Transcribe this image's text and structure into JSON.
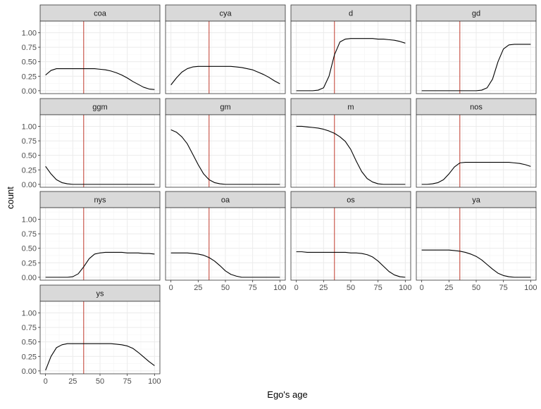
{
  "chart_data": {
    "type": "line",
    "facet_layout": "4 columns, 4 rows",
    "xlabel": "Ego's age",
    "ylabel": "count",
    "xlim": [
      0,
      100
    ],
    "ylim": [
      0,
      1.0
    ],
    "x_ticks": [
      "0",
      "25",
      "50",
      "75",
      "100"
    ],
    "y_ticks": [
      "0.00",
      "0.25",
      "0.50",
      "0.75",
      "1.00"
    ],
    "grid": true,
    "reference_line": {
      "x": 35,
      "color": "#c0392b"
    },
    "colors": {
      "line": "#000000",
      "vline": "#c0392b",
      "strip_fill": "#d9d9d9",
      "grid_major": "#ebebeb",
      "grid_minor": "#f5f5f5"
    },
    "x": [
      0,
      5,
      10,
      15,
      20,
      25,
      30,
      35,
      40,
      45,
      50,
      55,
      60,
      65,
      70,
      75,
      80,
      85,
      90,
      95,
      100
    ],
    "series": [
      {
        "name": "coa",
        "values": [
          0.27,
          0.35,
          0.38,
          0.38,
          0.38,
          0.38,
          0.38,
          0.38,
          0.38,
          0.38,
          0.37,
          0.36,
          0.34,
          0.31,
          0.27,
          0.22,
          0.16,
          0.11,
          0.06,
          0.03,
          0.02
        ]
      },
      {
        "name": "cya",
        "values": [
          0.1,
          0.22,
          0.32,
          0.38,
          0.41,
          0.42,
          0.42,
          0.42,
          0.42,
          0.42,
          0.42,
          0.42,
          0.41,
          0.4,
          0.38,
          0.36,
          0.32,
          0.28,
          0.23,
          0.17,
          0.12
        ]
      },
      {
        "name": "d",
        "values": [
          0.0,
          0.0,
          0.0,
          0.0,
          0.01,
          0.05,
          0.25,
          0.62,
          0.84,
          0.89,
          0.9,
          0.9,
          0.9,
          0.9,
          0.9,
          0.89,
          0.89,
          0.88,
          0.87,
          0.85,
          0.82
        ]
      },
      {
        "name": "gd",
        "values": [
          0.0,
          0.0,
          0.0,
          0.0,
          0.0,
          0.0,
          0.0,
          0.0,
          0.0,
          0.0,
          0.0,
          0.01,
          0.05,
          0.2,
          0.5,
          0.72,
          0.79,
          0.8,
          0.8,
          0.8,
          0.8
        ]
      },
      {
        "name": "ggm",
        "values": [
          0.31,
          0.18,
          0.08,
          0.03,
          0.01,
          0.0,
          0.0,
          0.0,
          0.0,
          0.0,
          0.0,
          0.0,
          0.0,
          0.0,
          0.0,
          0.0,
          0.0,
          0.0,
          0.0,
          0.0,
          0.0
        ]
      },
      {
        "name": "gm",
        "values": [
          0.94,
          0.9,
          0.82,
          0.7,
          0.52,
          0.34,
          0.18,
          0.08,
          0.03,
          0.01,
          0.0,
          0.0,
          0.0,
          0.0,
          0.0,
          0.0,
          0.0,
          0.0,
          0.0,
          0.0,
          0.0
        ]
      },
      {
        "name": "m",
        "values": [
          1.0,
          1.0,
          0.99,
          0.98,
          0.97,
          0.95,
          0.92,
          0.88,
          0.82,
          0.74,
          0.6,
          0.4,
          0.22,
          0.1,
          0.04,
          0.01,
          0.0,
          0.0,
          0.0,
          0.0,
          0.0
        ]
      },
      {
        "name": "nos",
        "values": [
          0.0,
          0.0,
          0.01,
          0.03,
          0.08,
          0.18,
          0.3,
          0.37,
          0.38,
          0.38,
          0.38,
          0.38,
          0.38,
          0.38,
          0.38,
          0.38,
          0.38,
          0.37,
          0.36,
          0.34,
          0.31
        ]
      },
      {
        "name": "nys",
        "values": [
          0.0,
          0.0,
          0.0,
          0.0,
          0.0,
          0.01,
          0.06,
          0.18,
          0.32,
          0.4,
          0.42,
          0.43,
          0.43,
          0.43,
          0.43,
          0.42,
          0.42,
          0.42,
          0.41,
          0.41,
          0.4
        ]
      },
      {
        "name": "oa",
        "values": [
          0.42,
          0.42,
          0.42,
          0.42,
          0.41,
          0.4,
          0.38,
          0.34,
          0.28,
          0.2,
          0.11,
          0.05,
          0.02,
          0.0,
          0.0,
          0.0,
          0.0,
          0.0,
          0.0,
          0.0,
          0.0
        ]
      },
      {
        "name": "os",
        "values": [
          0.44,
          0.44,
          0.43,
          0.43,
          0.43,
          0.43,
          0.43,
          0.43,
          0.43,
          0.43,
          0.42,
          0.42,
          0.41,
          0.39,
          0.35,
          0.28,
          0.19,
          0.1,
          0.04,
          0.01,
          0.0
        ]
      },
      {
        "name": "ya",
        "values": [
          0.47,
          0.47,
          0.47,
          0.47,
          0.47,
          0.47,
          0.46,
          0.45,
          0.43,
          0.4,
          0.36,
          0.3,
          0.22,
          0.14,
          0.07,
          0.03,
          0.01,
          0.0,
          0.0,
          0.0,
          0.0
        ]
      },
      {
        "name": "ys",
        "values": [
          0.01,
          0.25,
          0.4,
          0.45,
          0.47,
          0.47,
          0.47,
          0.47,
          0.47,
          0.47,
          0.47,
          0.47,
          0.47,
          0.46,
          0.45,
          0.43,
          0.39,
          0.32,
          0.24,
          0.16,
          0.09
        ]
      }
    ]
  }
}
